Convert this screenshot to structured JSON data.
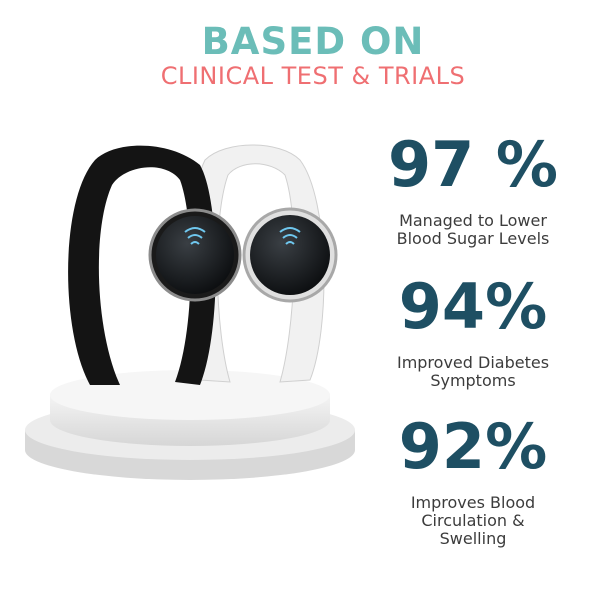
{
  "header": {
    "title": "BASED ON",
    "subtitle": "CLINICAL TEST & TRIALS"
  },
  "stats": [
    {
      "value": "97 %",
      "label_line1": "Managed to Lower",
      "label_line2": "Blood Sugar Levels"
    },
    {
      "value": "94%",
      "label_line1": "Improved Diabetes",
      "label_line2": "Symptoms"
    },
    {
      "value": "92%",
      "label_line1": "Improves Blood",
      "label_line2": "Circulation &",
      "label_line3": "Swelling"
    }
  ],
  "colors": {
    "title": "#6bbdb8",
    "subtitle": "#ef6f72",
    "numbers": "#1e4f63",
    "text": "#3c3c3c"
  },
  "image": {
    "subject": "black and white bracelets on white pedestal"
  }
}
